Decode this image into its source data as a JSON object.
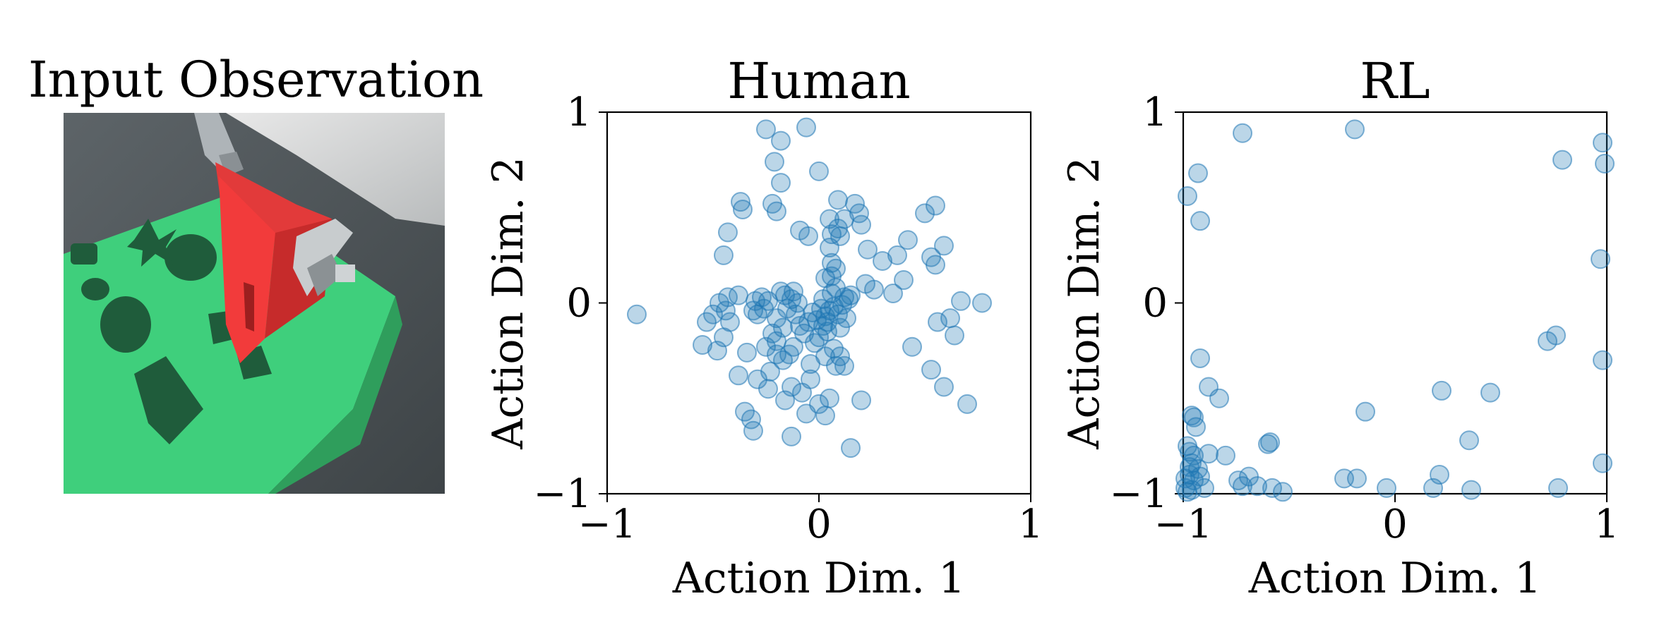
{
  "panel_input": {
    "title": "Input Observation"
  },
  "chart_data": [
    {
      "type": "scatter",
      "title": "Human",
      "xlabel": "Action Dim. 1",
      "ylabel": "Action Dim. 2",
      "xlim": [
        -1,
        1
      ],
      "ylim": [
        -1,
        1
      ],
      "xticks": [
        "−1",
        "0",
        "1"
      ],
      "yticks": [
        "−1",
        "0",
        "1"
      ],
      "grid": false,
      "marker_color": "#1f77b4",
      "series": [
        {
          "points": [
            [
              -0.86,
              -0.06
            ],
            [
              -0.25,
              0.91
            ],
            [
              -0.18,
              0.85
            ],
            [
              -0.06,
              0.92
            ],
            [
              -0.21,
              0.74
            ],
            [
              0.0,
              0.69
            ],
            [
              -0.18,
              0.63
            ],
            [
              -0.37,
              0.53
            ],
            [
              -0.36,
              0.49
            ],
            [
              -0.22,
              0.52
            ],
            [
              -0.2,
              0.48
            ],
            [
              0.09,
              0.54
            ],
            [
              0.17,
              0.52
            ],
            [
              0.19,
              0.47
            ],
            [
              0.05,
              0.44
            ],
            [
              0.12,
              0.44
            ],
            [
              0.09,
              0.39
            ],
            [
              0.2,
              0.41
            ],
            [
              0.06,
              0.36
            ],
            [
              0.1,
              0.35
            ],
            [
              -0.09,
              0.38
            ],
            [
              -0.05,
              0.35
            ],
            [
              -0.43,
              0.37
            ],
            [
              0.55,
              0.51
            ],
            [
              0.5,
              0.47
            ],
            [
              0.42,
              0.33
            ],
            [
              0.37,
              0.25
            ],
            [
              0.3,
              0.22
            ],
            [
              0.23,
              0.28
            ],
            [
              0.05,
              0.29
            ],
            [
              0.06,
              0.21
            ],
            [
              0.08,
              0.18
            ],
            [
              0.06,
              0.14
            ],
            [
              0.03,
              0.13
            ],
            [
              -0.45,
              0.25
            ],
            [
              0.53,
              0.24
            ],
            [
              0.55,
              0.2
            ],
            [
              0.59,
              0.3
            ],
            [
              0.4,
              0.12
            ],
            [
              0.26,
              0.07
            ],
            [
              0.22,
              0.1
            ],
            [
              0.15,
              0.04
            ],
            [
              0.35,
              0.05
            ],
            [
              0.67,
              0.01
            ],
            [
              0.77,
              0.0
            ],
            [
              0.62,
              -0.08
            ],
            [
              0.56,
              -0.1
            ],
            [
              0.64,
              -0.17
            ],
            [
              0.44,
              -0.23
            ],
            [
              0.53,
              -0.35
            ],
            [
              0.59,
              -0.44
            ],
            [
              0.7,
              -0.53
            ],
            [
              0.2,
              -0.51
            ],
            [
              0.15,
              -0.76
            ],
            [
              -0.13,
              -0.7
            ],
            [
              -0.31,
              -0.67
            ],
            [
              -0.32,
              -0.61
            ],
            [
              -0.35,
              -0.57
            ],
            [
              -0.06,
              -0.58
            ],
            [
              0.0,
              -0.53
            ],
            [
              0.05,
              -0.5
            ],
            [
              0.03,
              -0.59
            ],
            [
              -0.16,
              -0.51
            ],
            [
              -0.08,
              -0.47
            ],
            [
              -0.04,
              -0.4
            ],
            [
              -0.24,
              -0.45
            ],
            [
              -0.13,
              -0.44
            ],
            [
              -0.29,
              -0.4
            ],
            [
              -0.38,
              -0.38
            ],
            [
              -0.23,
              -0.36
            ],
            [
              -0.04,
              -0.32
            ],
            [
              0.08,
              -0.33
            ],
            [
              0.12,
              -0.33
            ],
            [
              0.1,
              -0.28
            ],
            [
              0.03,
              -0.28
            ],
            [
              -0.17,
              -0.3
            ],
            [
              -0.2,
              -0.27
            ],
            [
              -0.25,
              -0.23
            ],
            [
              -0.12,
              -0.23
            ],
            [
              -0.02,
              -0.21
            ],
            [
              0.07,
              -0.24
            ],
            [
              -0.34,
              -0.26
            ],
            [
              -0.55,
              -0.22
            ],
            [
              -0.48,
              -0.25
            ],
            [
              -0.45,
              -0.18
            ],
            [
              -0.53,
              -0.1
            ],
            [
              -0.5,
              -0.06
            ],
            [
              -0.44,
              -0.04
            ],
            [
              -0.42,
              -0.1
            ],
            [
              -0.47,
              0.0
            ],
            [
              -0.43,
              0.03
            ],
            [
              -0.38,
              0.04
            ],
            [
              -0.31,
              -0.04
            ],
            [
              -0.29,
              -0.06
            ],
            [
              -0.26,
              -0.03
            ],
            [
              -0.24,
              0.01
            ],
            [
              -0.2,
              -0.08
            ],
            [
              -0.17,
              -0.13
            ],
            [
              -0.15,
              -0.03
            ],
            [
              -0.13,
              0.02
            ],
            [
              -0.11,
              -0.06
            ],
            [
              -0.09,
              -0.12
            ],
            [
              -0.07,
              -0.16
            ],
            [
              -0.05,
              -0.1
            ],
            [
              -0.03,
              -0.05
            ],
            [
              -0.01,
              -0.09
            ],
            [
              0.01,
              -0.03
            ],
            [
              0.02,
              0.02
            ],
            [
              0.03,
              -0.07
            ],
            [
              0.04,
              -0.1
            ],
            [
              0.05,
              -0.04
            ],
            [
              0.06,
              0.05
            ],
            [
              0.07,
              -0.02
            ],
            [
              0.08,
              0.08
            ],
            [
              0.09,
              -0.06
            ],
            [
              0.1,
              -0.13
            ],
            [
              0.11,
              -0.01
            ],
            [
              0.12,
              0.03
            ],
            [
              0.13,
              -0.08
            ],
            [
              0.14,
              0.02
            ],
            [
              -0.18,
              0.06
            ],
            [
              -0.16,
              0.04
            ],
            [
              -0.12,
              0.06
            ],
            [
              -0.1,
              0.0
            ],
            [
              -0.3,
              0.01
            ],
            [
              -0.27,
              0.03
            ],
            [
              -0.22,
              -0.16
            ],
            [
              -0.2,
              -0.2
            ],
            [
              -0.14,
              -0.27
            ],
            [
              0.0,
              -0.18
            ],
            [
              0.02,
              -0.12
            ],
            [
              0.04,
              -0.15
            ]
          ]
        }
      ]
    },
    {
      "type": "scatter",
      "title": "RL",
      "xlabel": "Action Dim. 1",
      "ylabel": "Action Dim. 2",
      "xlim": [
        -1,
        1
      ],
      "ylim": [
        -1,
        1
      ],
      "xticks": [
        "−1",
        "0",
        "1"
      ],
      "yticks": [
        "−1",
        "0",
        "1"
      ],
      "grid": false,
      "marker_color": "#1f77b4",
      "series": [
        {
          "points": [
            [
              -0.72,
              0.89
            ],
            [
              -0.19,
              0.91
            ],
            [
              0.98,
              0.84
            ],
            [
              0.99,
              0.73
            ],
            [
              0.79,
              0.75
            ],
            [
              -0.93,
              0.68
            ],
            [
              -0.98,
              0.56
            ],
            [
              -0.92,
              0.43
            ],
            [
              0.97,
              0.23
            ],
            [
              0.72,
              -0.2
            ],
            [
              0.76,
              -0.17
            ],
            [
              0.98,
              -0.3
            ],
            [
              -0.92,
              -0.29
            ],
            [
              -0.88,
              -0.44
            ],
            [
              -0.83,
              -0.5
            ],
            [
              -0.95,
              -0.6
            ],
            [
              -0.94,
              -0.65
            ],
            [
              -0.96,
              -0.59
            ],
            [
              0.22,
              -0.46
            ],
            [
              0.45,
              -0.47
            ],
            [
              -0.14,
              -0.57
            ],
            [
              0.35,
              -0.72
            ],
            [
              -0.59,
              -0.73
            ],
            [
              -0.6,
              -0.74
            ],
            [
              -0.98,
              -0.75
            ],
            [
              -0.97,
              -0.78
            ],
            [
              -0.95,
              -0.8
            ],
            [
              -0.96,
              -0.84
            ],
            [
              -0.93,
              -0.87
            ],
            [
              -0.97,
              -0.9
            ],
            [
              -0.95,
              -0.93
            ],
            [
              -0.92,
              -0.91
            ],
            [
              -0.88,
              -0.79
            ],
            [
              -0.8,
              -0.8
            ],
            [
              -0.74,
              -0.93
            ],
            [
              -0.72,
              -0.96
            ],
            [
              -0.69,
              -0.91
            ],
            [
              -0.65,
              -0.96
            ],
            [
              -0.58,
              -0.97
            ],
            [
              -0.53,
              -0.99
            ],
            [
              -0.24,
              -0.92
            ],
            [
              -0.18,
              -0.92
            ],
            [
              -0.04,
              -0.97
            ],
            [
              0.18,
              -0.97
            ],
            [
              0.21,
              -0.9
            ],
            [
              0.36,
              -0.98
            ],
            [
              0.77,
              -0.97
            ],
            [
              0.98,
              -0.84
            ],
            [
              -0.99,
              -0.97
            ],
            [
              -0.98,
              -0.99
            ],
            [
              -0.96,
              -0.98
            ],
            [
              -0.99,
              -0.92
            ],
            [
              -0.97,
              -0.86
            ],
            [
              -0.9,
              -0.97
            ]
          ]
        }
      ]
    }
  ]
}
